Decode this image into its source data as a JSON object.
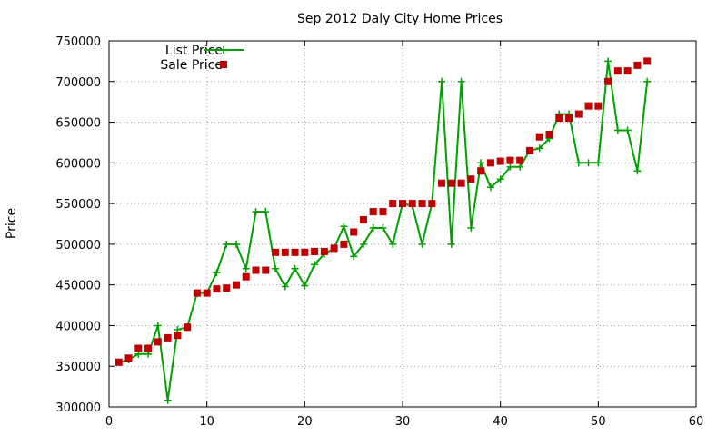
{
  "chart_data": {
    "type": "line",
    "title": "Sep 2012 Daly City Home Prices",
    "xlabel": "",
    "ylabel": "Price",
    "xlim": [
      0,
      60
    ],
    "ylim": [
      300000,
      750000
    ],
    "x_ticks": [
      "0",
      "10",
      "20",
      "30",
      "40",
      "50",
      "60"
    ],
    "y_ticks": [
      "300000",
      "350000",
      "400000",
      "450000",
      "500000",
      "550000",
      "600000",
      "650000",
      "700000",
      "750000"
    ],
    "grid": true,
    "legend_position": "top-left",
    "series": [
      {
        "name": "List Price",
        "style": "line-plus",
        "color": "#00a000",
        "x": [
          1,
          2,
          3,
          4,
          5,
          6,
          7,
          8,
          9,
          10,
          11,
          12,
          13,
          14,
          15,
          16,
          17,
          18,
          19,
          20,
          21,
          22,
          23,
          24,
          25,
          26,
          27,
          28,
          29,
          30,
          31,
          32,
          33,
          34,
          35,
          36,
          37,
          38,
          39,
          40,
          41,
          42,
          43,
          44,
          45,
          46,
          47,
          48,
          49,
          50,
          51,
          52,
          53,
          54,
          55
        ],
        "values": [
          355000,
          358000,
          365000,
          365000,
          400000,
          308000,
          395000,
          398000,
          440000,
          440000,
          465000,
          500000,
          500000,
          470000,
          540000,
          540000,
          470000,
          448000,
          470000,
          449000,
          475000,
          488000,
          495000,
          522000,
          485000,
          500000,
          520000,
          520000,
          500000,
          550000,
          547000,
          500000,
          550000,
          700000,
          500000,
          700000,
          520000,
          600000,
          570000,
          580000,
          595000,
          595000,
          615000,
          618000,
          630000,
          660000,
          660000,
          600000,
          600000,
          600000,
          725000,
          640000,
          640000,
          590000,
          700000
        ]
      },
      {
        "name": "Sale Price",
        "style": "square-points",
        "color": "#c00000",
        "x": [
          1,
          2,
          3,
          4,
          5,
          6,
          7,
          8,
          9,
          10,
          11,
          12,
          13,
          14,
          15,
          16,
          17,
          18,
          19,
          20,
          21,
          22,
          23,
          24,
          25,
          26,
          27,
          28,
          29,
          30,
          31,
          32,
          33,
          34,
          35,
          36,
          37,
          38,
          39,
          40,
          41,
          42,
          43,
          44,
          45,
          46,
          47,
          48,
          49,
          50,
          51,
          52,
          53,
          54,
          55
        ],
        "values": [
          355000,
          360000,
          372000,
          372000,
          380000,
          385000,
          388000,
          398000,
          440000,
          440000,
          445000,
          446000,
          450000,
          460000,
          468000,
          468000,
          490000,
          490000,
          490000,
          490000,
          491000,
          491000,
          495000,
          500000,
          515000,
          530000,
          540000,
          540000,
          550000,
          550000,
          550000,
          550000,
          550000,
          575000,
          575000,
          575000,
          580000,
          590000,
          600000,
          602000,
          603000,
          603000,
          615000,
          632000,
          635000,
          655000,
          655000,
          660000,
          670000,
          670000,
          700000,
          713000,
          713000,
          720000,
          725000
        ]
      }
    ]
  }
}
